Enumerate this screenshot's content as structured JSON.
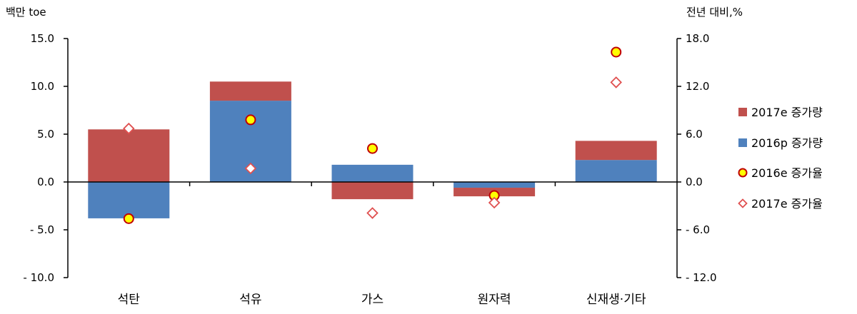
{
  "chart_data": {
    "type": "bar",
    "left_unit": "백만 toe",
    "right_unit": "전년 대비,%",
    "categories": [
      "석탄",
      "석유",
      "가스",
      "원자력",
      "신재생·기타"
    ],
    "left_axis": {
      "ylim": [
        -10,
        15
      ],
      "ticks": [
        15,
        10,
        5,
        0,
        -5,
        -10
      ],
      "tick_labels": [
        "15.0",
        "10.0",
        "5.0",
        "0.0",
        "- 5.0",
        "- 10.0"
      ]
    },
    "right_axis": {
      "ylim": [
        -12,
        18
      ],
      "ticks": [
        18,
        12,
        6,
        0,
        -6,
        -12
      ],
      "tick_labels": [
        "18.0",
        "12.0",
        "6.0",
        "0.0",
        "- 6.0",
        "- 12.0"
      ]
    },
    "series": [
      {
        "name": "2017e 증가량",
        "kind": "bar",
        "axis": "left",
        "color": "#C0504D",
        "values": [
          5.5,
          2.0,
          -1.8,
          -0.9,
          2.0
        ]
      },
      {
        "name": "2016p 증가량",
        "kind": "bar",
        "axis": "left",
        "color": "#4F81BD",
        "values": [
          -3.8,
          8.5,
          1.8,
          -0.6,
          2.3
        ]
      },
      {
        "name": "2016e 증가율",
        "kind": "marker",
        "marker": "circle",
        "axis": "right",
        "color": "#FFFF00",
        "stroke": "#C00000",
        "values": [
          -4.6,
          7.8,
          4.2,
          -1.7,
          16.3
        ]
      },
      {
        "name": "2017e 증가율",
        "kind": "marker",
        "marker": "diamond",
        "axis": "right",
        "color": "#FFFFFF",
        "stroke": "#E05050",
        "values": [
          6.7,
          1.7,
          -3.9,
          -2.6,
          12.5
        ]
      }
    ],
    "legend_position": "right",
    "grid": false
  }
}
